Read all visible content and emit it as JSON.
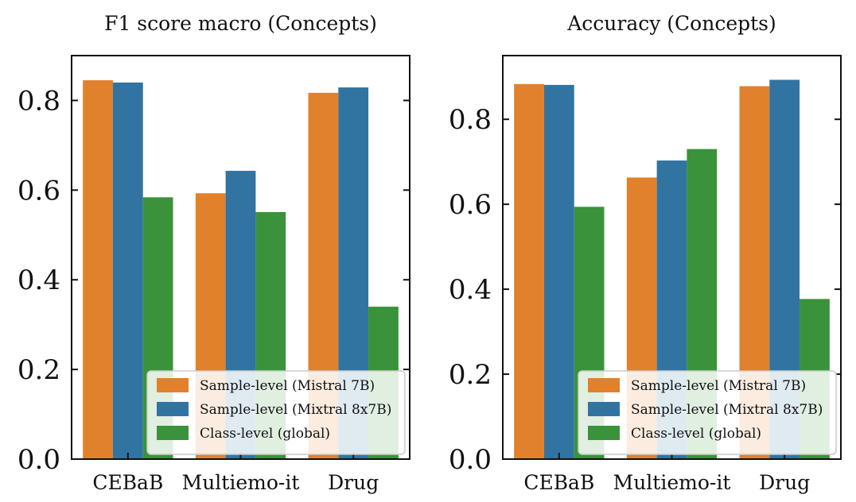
{
  "chart_data": [
    {
      "type": "bar",
      "title": "F1 score macro (Concepts)",
      "xlabel": "",
      "ylabel": "",
      "categories": [
        "CEBaB",
        "Multiemo-it",
        "Drug"
      ],
      "series": [
        {
          "name": "Sample-level (Mistral 7B)",
          "values": [
            0.845,
            0.593,
            0.817
          ]
        },
        {
          "name": "Sample-level (Mixtral 8x7B)",
          "values": [
            0.84,
            0.643,
            0.829
          ]
        },
        {
          "name": "Class-level (global)",
          "values": [
            0.584,
            0.551,
            0.34
          ]
        }
      ],
      "ylim": [
        0,
        0.9
      ],
      "yticks": [
        "0.0",
        "0.2",
        "0.4",
        "0.6",
        "0.8"
      ],
      "ytick_values": [
        0,
        0.2,
        0.4,
        0.6,
        0.8
      ],
      "grid": false,
      "legend_position": "lower-right"
    },
    {
      "type": "bar",
      "title": "Accuracy (Concepts)",
      "xlabel": "",
      "ylabel": "",
      "categories": [
        "CEBaB",
        "Multiemo-it",
        "Drug"
      ],
      "series": [
        {
          "name": "Sample-level (Mistral 7B)",
          "values": [
            0.883,
            0.663,
            0.878
          ]
        },
        {
          "name": "Sample-level (Mixtral 8x7B)",
          "values": [
            0.881,
            0.703,
            0.893
          ]
        },
        {
          "name": "Class-level (global)",
          "values": [
            0.594,
            0.73,
            0.377
          ]
        }
      ],
      "ylim": [
        0,
        0.95
      ],
      "yticks": [
        "0.0",
        "0.2",
        "0.4",
        "0.6",
        "0.8"
      ],
      "ytick_values": [
        0,
        0.2,
        0.4,
        0.6,
        0.8
      ],
      "grid": false,
      "legend_position": "lower-right"
    }
  ],
  "colors": {
    "Sample-level (Mistral 7B)": "#e1812c",
    "Sample-level (Mixtral 8x7B)": "#3274a1",
    "Class-level (global)": "#3a923a"
  }
}
